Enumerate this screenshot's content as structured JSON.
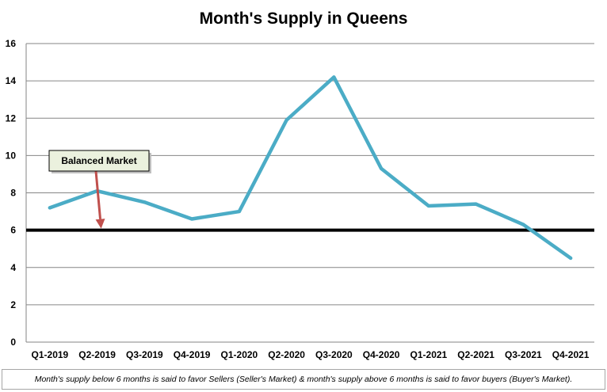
{
  "chart_data": {
    "type": "line",
    "title": "Month's Supply in Queens",
    "xlabel": "",
    "ylabel": "",
    "categories": [
      "Q1-2019",
      "Q2-2019",
      "Q3-2019",
      "Q4-2019",
      "Q1-2020",
      "Q2-2020",
      "Q3-2020",
      "Q4-2020",
      "Q1-2021",
      "Q2-2021",
      "Q3-2021",
      "Q4-2021"
    ],
    "series": [
      {
        "values": [
          7.2,
          8.1,
          7.5,
          6.6,
          7.0,
          11.9,
          14.2,
          9.3,
          7.3,
          7.4,
          6.3,
          4.5
        ],
        "color": "#4bacc6"
      }
    ],
    "ylim": [
      0,
      16
    ],
    "yticks": [
      0,
      2,
      4,
      6,
      8,
      10,
      12,
      14,
      16
    ],
    "grid": true,
    "legend": "none",
    "reference_line": {
      "value": 6,
      "color": "#000000"
    },
    "annotation": {
      "text": "Balanced  Market",
      "points_to": {
        "category": "Q2-2019",
        "value": 6
      },
      "arrow_color": "#c0504d",
      "box_color": "#ebf1de"
    },
    "footnote": "Month's supply below 6 months is said to favor Sellers (Seller's Market) & month's supply above 6 months is said to favor buyers (Buyer's Market)."
  }
}
